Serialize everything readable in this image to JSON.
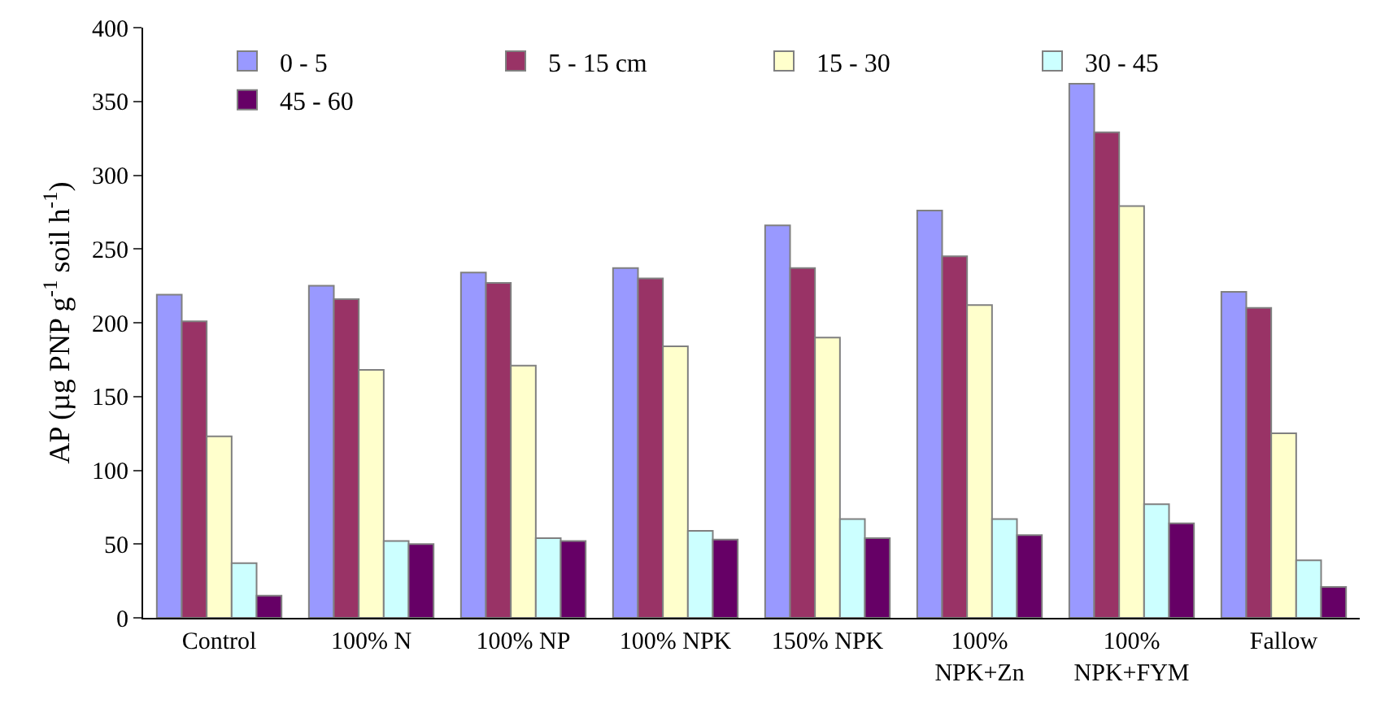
{
  "chart_data": {
    "type": "bar",
    "ylabel": "AP (µg PNP g$^{-1}$ soil h$^{-1}$)",
    "categories": [
      "Control",
      "100% N",
      "100% NP",
      "100% NPK",
      "150% NPK",
      "100%\nNPK+Zn",
      "100%\nNPK+FYM",
      "Fallow"
    ],
    "series": [
      {
        "name": "0 - 5",
        "color": "#9999ff",
        "values": [
          219,
          225,
          234,
          237,
          266,
          276,
          362,
          221
        ]
      },
      {
        "name": "5 - 15 cm",
        "color": "#993366",
        "values": [
          201,
          216,
          227,
          230,
          237,
          245,
          329,
          210
        ]
      },
      {
        "name": "15 - 30",
        "color": "#ffffcc",
        "values": [
          123,
          168,
          171,
          184,
          190,
          212,
          279,
          125
        ]
      },
      {
        "name": "30 - 45",
        "color": "#ccffff",
        "values": [
          37,
          52,
          54,
          59,
          67,
          67,
          77,
          39
        ]
      },
      {
        "name": "45 - 60",
        "color": "#660066",
        "values": [
          15,
          50,
          52,
          53,
          54,
          56,
          64,
          21
        ]
      }
    ],
    "ylim": [
      0,
      400
    ],
    "yticks": [
      0,
      50,
      100,
      150,
      200,
      250,
      300,
      350,
      400
    ],
    "grid": false,
    "legend": "top"
  }
}
